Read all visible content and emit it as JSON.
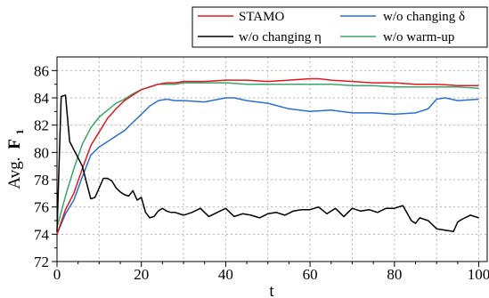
{
  "chart_data": {
    "type": "line",
    "title": "",
    "xlabel": "t",
    "ylabel": "Avg.",
    "ylabel_bold": "F",
    "ylabel_sub": "1",
    "xlim": [
      0,
      102
    ],
    "ylim": [
      72,
      87
    ],
    "x_ticks": [
      0,
      20,
      40,
      60,
      80,
      100
    ],
    "y_ticks": [
      72,
      74,
      76,
      78,
      80,
      82,
      84,
      86
    ],
    "grid": true,
    "legend_position": "top-right, above plot",
    "series": [
      {
        "name": "STAMO",
        "color": "#e0191f",
        "x": [
          0,
          2,
          4,
          6,
          8,
          10,
          12,
          14,
          16,
          18,
          20,
          22,
          24,
          26,
          28,
          30,
          35,
          40,
          45,
          50,
          55,
          60,
          62,
          65,
          70,
          75,
          80,
          85,
          90,
          95,
          100
        ],
        "y": [
          74.0,
          75.8,
          77.0,
          78.8,
          80.5,
          81.5,
          82.5,
          83.2,
          83.8,
          84.2,
          84.6,
          84.8,
          85.0,
          85.1,
          85.1,
          85.2,
          85.2,
          85.3,
          85.3,
          85.2,
          85.3,
          85.4,
          85.4,
          85.3,
          85.2,
          85.1,
          85.1,
          85.0,
          85.0,
          84.9,
          84.9
        ]
      },
      {
        "name": "w/o changing δ",
        "color": "#2a6fd1",
        "x": [
          0,
          2,
          4,
          6,
          8,
          10,
          12,
          14,
          16,
          18,
          20,
          22,
          24,
          26,
          28,
          30,
          35,
          40,
          42,
          45,
          50,
          55,
          60,
          65,
          70,
          75,
          80,
          85,
          88,
          90,
          92,
          95,
          100
        ],
        "y": [
          74.0,
          75.5,
          76.5,
          78.2,
          79.8,
          80.4,
          80.8,
          81.2,
          81.6,
          82.2,
          82.8,
          83.4,
          83.8,
          83.9,
          83.8,
          83.8,
          83.7,
          84.0,
          84.0,
          83.8,
          83.6,
          83.2,
          83.0,
          83.1,
          82.9,
          82.9,
          82.8,
          82.9,
          83.2,
          83.9,
          84.0,
          83.8,
          83.9
        ]
      },
      {
        "name": "w/o changing η",
        "color": "#000000",
        "x": [
          0,
          1,
          2,
          3,
          4,
          5,
          6,
          7,
          8,
          9,
          10,
          11,
          12,
          13,
          14,
          15,
          16,
          17,
          18,
          19,
          20,
          21,
          22,
          23,
          24,
          25,
          26,
          27,
          28,
          30,
          32,
          34,
          36,
          38,
          40,
          42,
          44,
          46,
          48,
          50,
          52,
          54,
          56,
          58,
          60,
          62,
          64,
          66,
          68,
          70,
          72,
          74,
          76,
          78,
          80,
          82,
          84,
          85,
          86,
          88,
          90,
          92,
          94,
          95,
          96,
          98,
          100
        ],
        "y": [
          74.2,
          84.1,
          84.2,
          80.8,
          80.2,
          79.6,
          79.0,
          77.8,
          76.6,
          76.7,
          77.4,
          78.1,
          78.1,
          77.9,
          77.4,
          77.1,
          76.9,
          76.8,
          77.2,
          76.5,
          76.7,
          75.6,
          75.2,
          75.3,
          75.7,
          75.9,
          75.7,
          75.6,
          75.6,
          75.4,
          75.6,
          75.9,
          75.3,
          75.6,
          75.9,
          75.3,
          75.5,
          75.4,
          75.2,
          75.5,
          75.6,
          75.4,
          75.7,
          75.8,
          75.8,
          76.0,
          75.5,
          75.9,
          75.3,
          75.9,
          75.7,
          75.8,
          75.6,
          75.9,
          75.9,
          76.1,
          75.0,
          74.8,
          75.2,
          75.0,
          74.4,
          74.3,
          74.2,
          74.9,
          75.1,
          75.4,
          75.2
        ]
      },
      {
        "name": "w/o warm-up",
        "color": "#3aa66b",
        "x": [
          0,
          2,
          4,
          6,
          8,
          10,
          12,
          14,
          16,
          18,
          20,
          22,
          24,
          26,
          28,
          30,
          35,
          40,
          45,
          50,
          55,
          60,
          65,
          70,
          75,
          80,
          85,
          90,
          95,
          100
        ],
        "y": [
          74.5,
          76.8,
          78.8,
          80.6,
          81.8,
          82.6,
          83.1,
          83.6,
          83.9,
          84.3,
          84.6,
          84.8,
          85.0,
          85.0,
          85.0,
          85.1,
          85.1,
          85.1,
          85.0,
          85.0,
          85.0,
          85.0,
          85.0,
          84.9,
          84.9,
          84.8,
          84.8,
          84.8,
          84.8,
          84.7
        ]
      }
    ]
  }
}
